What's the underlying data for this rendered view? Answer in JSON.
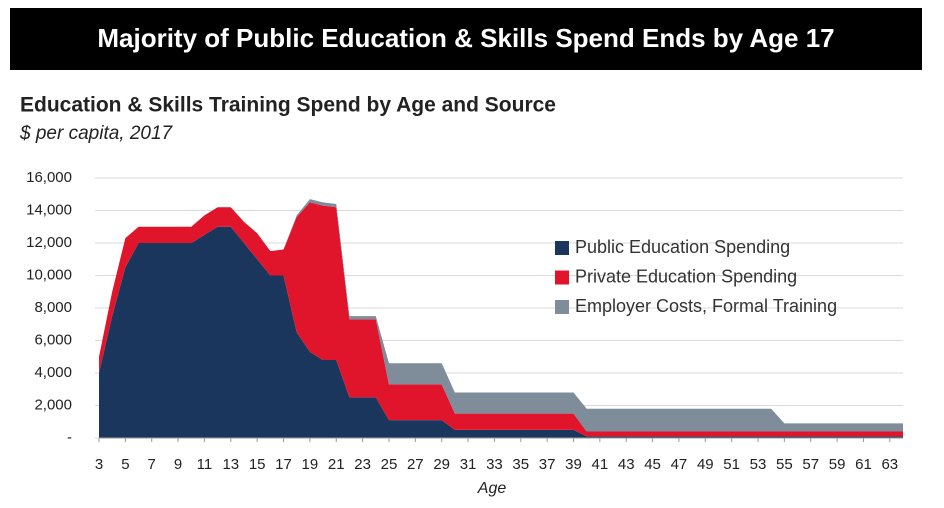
{
  "banner": "Majority of Public Education & Skills Spend Ends by Age 17",
  "chart_data": {
    "type": "area",
    "stacked": true,
    "title": "Education & Skills Training Spend by Age and Source",
    "subtitle": "$ per capita, 2017",
    "x_label": "Age",
    "x": [
      3,
      4,
      5,
      6,
      7,
      8,
      9,
      10,
      11,
      12,
      13,
      14,
      15,
      16,
      17,
      18,
      19,
      20,
      21,
      22,
      23,
      24,
      25,
      26,
      27,
      28,
      29,
      30,
      31,
      32,
      33,
      34,
      35,
      36,
      37,
      38,
      39,
      40,
      41,
      42,
      43,
      44,
      45,
      46,
      47,
      48,
      49,
      50,
      51,
      52,
      53,
      54,
      55,
      56,
      57,
      58,
      59,
      60,
      61,
      62,
      63,
      64
    ],
    "xlim": [
      3,
      64
    ],
    "xticks": [
      3,
      5,
      7,
      9,
      11,
      13,
      15,
      17,
      19,
      21,
      23,
      25,
      27,
      29,
      31,
      33,
      35,
      37,
      39,
      41,
      43,
      45,
      47,
      49,
      51,
      53,
      55,
      57,
      59,
      61,
      63
    ],
    "ylim": [
      0,
      16000
    ],
    "yticks": [
      {
        "value": 0,
        "label": "-"
      },
      {
        "value": 2000,
        "label": "2,000"
      },
      {
        "value": 4000,
        "label": "4,000"
      },
      {
        "value": 6000,
        "label": "6,000"
      },
      {
        "value": 8000,
        "label": "8,000"
      },
      {
        "value": 10000,
        "label": "10,000"
      },
      {
        "value": 12000,
        "label": "12,000"
      },
      {
        "value": 14000,
        "label": "14,000"
      },
      {
        "value": 16000,
        "label": "16,000"
      }
    ],
    "grid": true,
    "legend": "right",
    "series": [
      {
        "name": "Public Education Spending",
        "color": "#1b365d",
        "values": [
          4000,
          7500,
          10500,
          12000,
          12000,
          12000,
          12000,
          12000,
          12500,
          13000,
          13000,
          12000,
          11000,
          10000,
          10000,
          6500,
          5300,
          4800,
          4800,
          2500,
          2500,
          2500,
          1100,
          1100,
          1100,
          1100,
          1100,
          500,
          500,
          500,
          500,
          500,
          500,
          500,
          500,
          500,
          500,
          100,
          100,
          100,
          100,
          100,
          100,
          100,
          100,
          100,
          100,
          100,
          100,
          100,
          100,
          100,
          100,
          100,
          100,
          100,
          100,
          100,
          100,
          100,
          100,
          100
        ]
      },
      {
        "name": "Private Education Spending",
        "color": "#e0142a",
        "values": [
          1000,
          1500,
          1800,
          1000,
          1000,
          1000,
          1000,
          1000,
          1200,
          1200,
          1200,
          1300,
          1600,
          1500,
          1600,
          7100,
          9200,
          9500,
          9400,
          4800,
          4800,
          4800,
          2200,
          2200,
          2200,
          2200,
          2200,
          1000,
          1000,
          1000,
          1000,
          1000,
          1000,
          1000,
          1000,
          1000,
          1000,
          300,
          300,
          300,
          300,
          300,
          300,
          300,
          300,
          300,
          300,
          300,
          300,
          300,
          300,
          300,
          300,
          300,
          300,
          300,
          300,
          300,
          300,
          300,
          300,
          300
        ]
      },
      {
        "name": "Employer Costs, Formal Training",
        "color": "#7f8c99",
        "values": [
          0,
          0,
          0,
          0,
          0,
          0,
          0,
          0,
          0,
          0,
          0,
          0,
          0,
          0,
          0,
          100,
          200,
          200,
          200,
          200,
          200,
          200,
          1300,
          1300,
          1300,
          1300,
          1300,
          1300,
          1300,
          1300,
          1300,
          1300,
          1300,
          1300,
          1300,
          1300,
          1300,
          1400,
          1400,
          1400,
          1400,
          1400,
          1400,
          1400,
          1400,
          1400,
          1400,
          1400,
          1400,
          1400,
          1400,
          1400,
          500,
          500,
          500,
          500,
          500,
          500,
          500,
          500,
          500,
          500
        ]
      }
    ]
  }
}
